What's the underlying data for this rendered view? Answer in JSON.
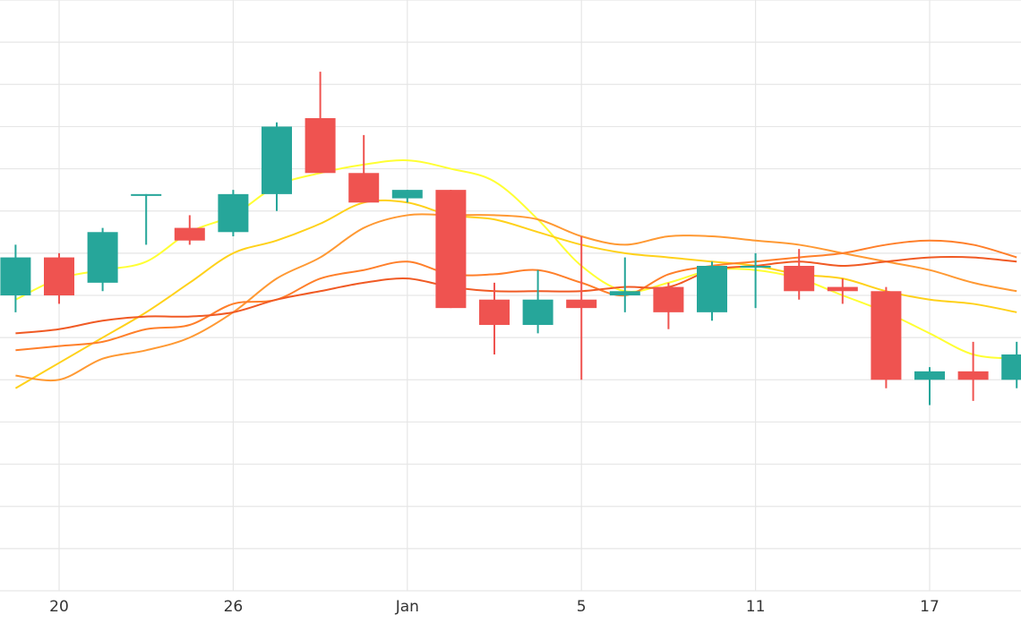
{
  "chart_data": {
    "type": "candlestick",
    "x_ticks": [
      "20",
      "26",
      "Jan",
      "5",
      "11",
      "17"
    ],
    "ylim": [
      0,
      14
    ],
    "grid": true,
    "colors": {
      "up": "#26a69a",
      "down": "#ef5350",
      "grid": "#e6e6e6"
    },
    "candles": [
      {
        "x": 18,
        "open": 7.0,
        "high": 8.2,
        "low": 6.6,
        "close": 7.9
      },
      {
        "x": 19,
        "open": 7.9,
        "high": 8.0,
        "low": 6.8,
        "close": 7.0
      },
      {
        "x": 20,
        "open": 7.3,
        "high": 8.6,
        "low": 7.1,
        "close": 8.5
      },
      {
        "x": 21,
        "open": 9.4,
        "high": 9.4,
        "low": 8.2,
        "close": 9.4
      },
      {
        "x": 22,
        "open": 8.6,
        "high": 8.9,
        "low": 8.2,
        "close": 8.3
      },
      {
        "x": 23,
        "open": 8.5,
        "high": 9.5,
        "low": 8.4,
        "close": 9.4
      },
      {
        "x": 24,
        "open": 9.4,
        "high": 11.1,
        "low": 9.0,
        "close": 11.0
      },
      {
        "x": 25,
        "open": 11.2,
        "high": 12.3,
        "low": 9.9,
        "close": 9.9
      },
      {
        "x": 26,
        "open": 9.9,
        "high": 10.8,
        "low": 9.2,
        "close": 9.2
      },
      {
        "x": 27,
        "open": 9.3,
        "high": 9.5,
        "low": 9.2,
        "close": 9.5
      },
      {
        "x": 28,
        "open": 9.5,
        "high": 9.5,
        "low": 6.7,
        "close": 6.7
      },
      {
        "x": 29,
        "open": 6.9,
        "high": 7.3,
        "low": 5.6,
        "close": 6.3
      },
      {
        "x": 30,
        "open": 6.3,
        "high": 7.6,
        "low": 6.1,
        "close": 6.9
      },
      {
        "x": 31,
        "open": 6.9,
        "high": 8.4,
        "low": 5.0,
        "close": 6.7
      },
      {
        "x": 32,
        "open": 7.0,
        "high": 7.9,
        "low": 6.6,
        "close": 7.1
      },
      {
        "x": 33,
        "open": 7.2,
        "high": 7.3,
        "low": 6.2,
        "close": 6.6
      },
      {
        "x": 34,
        "open": 6.6,
        "high": 7.8,
        "low": 6.4,
        "close": 7.7
      },
      {
        "x": 35,
        "open": 7.7,
        "high": 8.0,
        "low": 6.7,
        "close": 7.7
      },
      {
        "x": 36,
        "open": 7.7,
        "high": 8.1,
        "low": 6.9,
        "close": 7.1
      },
      {
        "x": 37,
        "open": 7.2,
        "high": 7.4,
        "low": 6.8,
        "close": 7.1
      },
      {
        "x": 38,
        "open": 7.1,
        "high": 7.2,
        "low": 4.8,
        "close": 5.0
      },
      {
        "x": 39,
        "open": 5.0,
        "high": 5.3,
        "low": 4.4,
        "close": 5.2
      },
      {
        "x": 40,
        "open": 5.2,
        "high": 5.9,
        "low": 4.5,
        "close": 5.0
      },
      {
        "x": 41,
        "open": 5.0,
        "high": 5.9,
        "low": 4.8,
        "close": 5.6
      }
    ],
    "series": [
      {
        "color": "#ffff33",
        "values": [
          [
            18,
            6.9
          ],
          [
            19,
            7.4
          ],
          [
            20,
            7.6
          ],
          [
            21,
            7.8
          ],
          [
            22,
            8.5
          ],
          [
            23,
            8.9
          ],
          [
            24,
            9.6
          ],
          [
            25,
            9.9
          ],
          [
            26,
            10.1
          ],
          [
            27,
            10.2
          ],
          [
            28,
            10.0
          ],
          [
            29,
            9.7
          ],
          [
            30,
            8.8
          ],
          [
            31,
            7.7
          ],
          [
            32,
            7.1
          ],
          [
            33,
            7.3
          ],
          [
            34,
            7.6
          ],
          [
            35,
            7.6
          ],
          [
            36,
            7.4
          ],
          [
            37,
            7.0
          ],
          [
            38,
            6.6
          ],
          [
            39,
            6.1
          ],
          [
            40,
            5.6
          ],
          [
            41,
            5.5
          ]
        ]
      },
      {
        "color": "#ffd11a",
        "values": [
          [
            18,
            4.8
          ],
          [
            19,
            5.4
          ],
          [
            20,
            6.0
          ],
          [
            21,
            6.6
          ],
          [
            22,
            7.3
          ],
          [
            23,
            8.0
          ],
          [
            24,
            8.3
          ],
          [
            25,
            8.7
          ],
          [
            26,
            9.2
          ],
          [
            27,
            9.2
          ],
          [
            28,
            8.9
          ],
          [
            29,
            8.8
          ],
          [
            30,
            8.5
          ],
          [
            31,
            8.2
          ],
          [
            32,
            8.0
          ],
          [
            33,
            7.9
          ],
          [
            34,
            7.8
          ],
          [
            35,
            7.7
          ],
          [
            36,
            7.5
          ],
          [
            37,
            7.4
          ],
          [
            38,
            7.1
          ],
          [
            39,
            6.9
          ],
          [
            40,
            6.8
          ],
          [
            41,
            6.6
          ]
        ]
      },
      {
        "color": "#ff9933",
        "values": [
          [
            18,
            5.1
          ],
          [
            19,
            5.0
          ],
          [
            20,
            5.5
          ],
          [
            21,
            5.7
          ],
          [
            22,
            6.0
          ],
          [
            23,
            6.6
          ],
          [
            24,
            7.4
          ],
          [
            25,
            7.9
          ],
          [
            26,
            8.6
          ],
          [
            27,
            8.9
          ],
          [
            28,
            8.9
          ],
          [
            29,
            8.9
          ],
          [
            30,
            8.8
          ],
          [
            31,
            8.4
          ],
          [
            32,
            8.2
          ],
          [
            33,
            8.4
          ],
          [
            34,
            8.4
          ],
          [
            35,
            8.3
          ],
          [
            36,
            8.2
          ],
          [
            37,
            8.0
          ],
          [
            38,
            7.8
          ],
          [
            39,
            7.6
          ],
          [
            40,
            7.3
          ],
          [
            41,
            7.1
          ]
        ]
      },
      {
        "color": "#ff7f2a",
        "values": [
          [
            18,
            5.7
          ],
          [
            19,
            5.8
          ],
          [
            20,
            5.9
          ],
          [
            21,
            6.2
          ],
          [
            22,
            6.3
          ],
          [
            23,
            6.8
          ],
          [
            24,
            6.9
          ],
          [
            25,
            7.4
          ],
          [
            26,
            7.6
          ],
          [
            27,
            7.8
          ],
          [
            28,
            7.5
          ],
          [
            29,
            7.5
          ],
          [
            30,
            7.6
          ],
          [
            31,
            7.3
          ],
          [
            32,
            7.0
          ],
          [
            33,
            7.5
          ],
          [
            34,
            7.7
          ],
          [
            35,
            7.8
          ],
          [
            36,
            7.9
          ],
          [
            37,
            8.0
          ],
          [
            38,
            8.2
          ],
          [
            39,
            8.3
          ],
          [
            40,
            8.2
          ],
          [
            41,
            7.9
          ]
        ]
      },
      {
        "color": "#f05a24",
        "values": [
          [
            18,
            6.1
          ],
          [
            19,
            6.2
          ],
          [
            20,
            6.4
          ],
          [
            21,
            6.5
          ],
          [
            22,
            6.5
          ],
          [
            23,
            6.6
          ],
          [
            24,
            6.9
          ],
          [
            25,
            7.1
          ],
          [
            26,
            7.3
          ],
          [
            27,
            7.4
          ],
          [
            28,
            7.2
          ],
          [
            29,
            7.1
          ],
          [
            30,
            7.1
          ],
          [
            31,
            7.1
          ],
          [
            32,
            7.2
          ],
          [
            33,
            7.2
          ],
          [
            34,
            7.6
          ],
          [
            35,
            7.7
          ],
          [
            36,
            7.8
          ],
          [
            37,
            7.7
          ],
          [
            38,
            7.8
          ],
          [
            39,
            7.9
          ],
          [
            40,
            7.9
          ],
          [
            41,
            7.8
          ]
        ]
      }
    ]
  }
}
